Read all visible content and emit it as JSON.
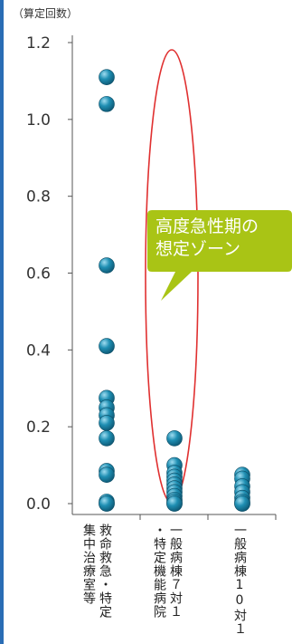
{
  "unit_label": "（算定回数）",
  "callout": {
    "text": "高度急性期の\n想定ゾーン",
    "color": "#a9c415"
  },
  "colors": {
    "marker": "#1f8fb3",
    "ellipse": "#e03030",
    "axis": "#555555",
    "accent_bar": "#2a6db5"
  },
  "chart_data": {
    "type": "scatter",
    "title": "",
    "ylabel": "（算定回数）",
    "ylim": [
      0,
      1.2
    ],
    "yticks": [
      "0.0",
      "0.2",
      "0.4",
      "0.6",
      "0.8",
      "1.0",
      "1.2"
    ],
    "categories": [
      [
        "救命救急・特定",
        "集中治療室等"
      ],
      [
        "一般病棟７対１",
        "・特定機能病院"
      ],
      [
        "一般病棟10対１"
      ]
    ],
    "series": [
      {
        "category": 0,
        "values": [
          1.11,
          1.04,
          0.62,
          0.41,
          0.275,
          0.25,
          0.23,
          0.21,
          0.17,
          0.085,
          0.075,
          0.005,
          0.0,
          0.0
        ]
      },
      {
        "category": 1,
        "values": [
          0.17,
          0.1,
          0.08,
          0.07,
          0.06,
          0.05,
          0.04,
          0.03,
          0.02,
          0.01,
          0.005,
          0.0,
          0.0
        ]
      },
      {
        "category": 2,
        "values": [
          0.075,
          0.065,
          0.045,
          0.03,
          0.015,
          0.005,
          0.0,
          0.0
        ]
      }
    ]
  }
}
